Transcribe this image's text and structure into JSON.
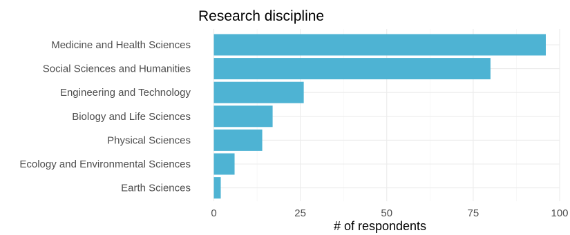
{
  "chart_data": {
    "type": "bar",
    "orientation": "horizontal",
    "title": "Research discipline",
    "xlabel": "# of respondents",
    "ylabel": "",
    "categories": [
      "Medicine and Health Sciences",
      "Social Sciences and Humanities",
      "Engineering and Technology",
      "Biology and Life Sciences",
      "Physical Sciences",
      "Ecology and Environmental Sciences",
      "Earth Sciences"
    ],
    "values": [
      96,
      80,
      26,
      17,
      14,
      6,
      2
    ],
    "xlim": [
      0,
      100
    ],
    "xticks": [
      0,
      25,
      50,
      75,
      100
    ],
    "grid": true,
    "legend": "none",
    "bar_color": "#4eb3d3"
  }
}
